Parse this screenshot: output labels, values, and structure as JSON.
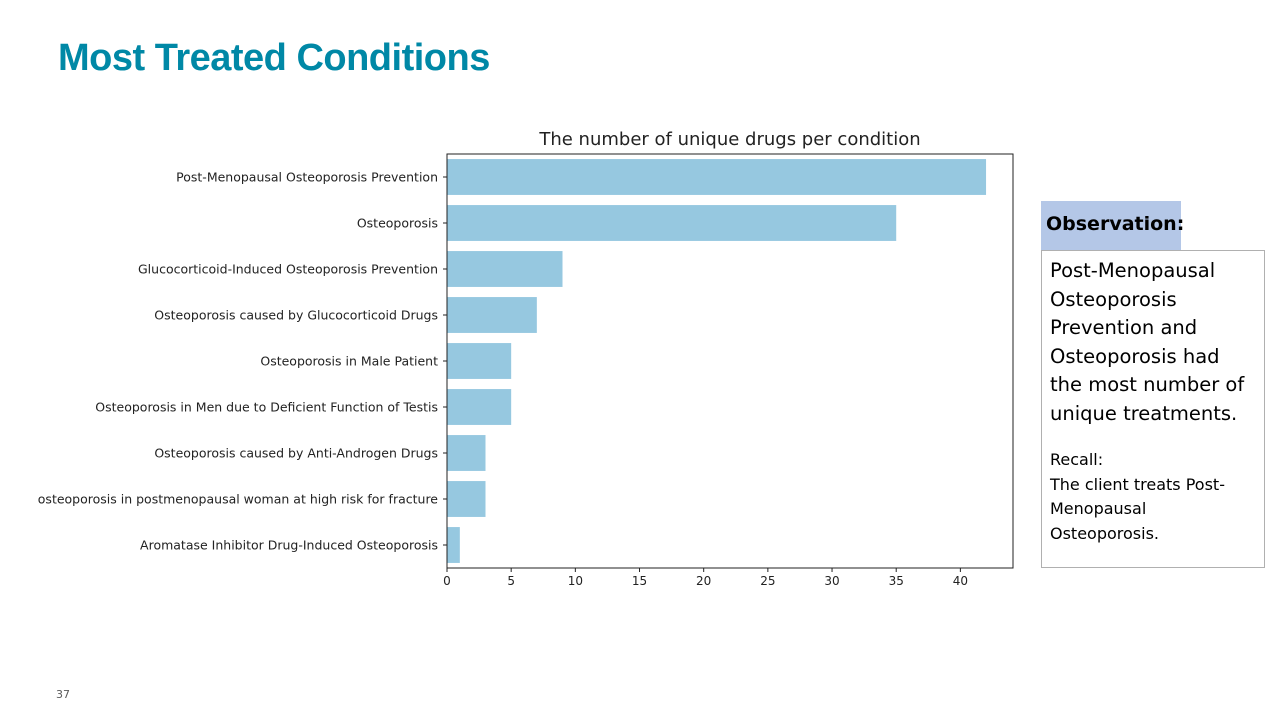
{
  "slide": {
    "title": "Most Treated Conditions",
    "title_color": "#0088A6",
    "page_number": "37"
  },
  "observation": {
    "header": "Observation:",
    "header_background": "#B4C7E7",
    "main_text": "Post-Menopausal Osteoporosis Prevention and Osteoporosis had the most number of unique treatments.",
    "recall_label": "Recall:",
    "recall_text": "The client treats Post-Menopausal Osteoporosis."
  },
  "chart_data": {
    "type": "bar",
    "orientation": "horizontal",
    "title": "The number of unique drugs per condition",
    "xlabel": "",
    "ylabel": "",
    "categories": [
      "Post-Menopausal Osteoporosis Prevention",
      "Osteoporosis",
      "Glucocorticoid-Induced Osteoporosis Prevention",
      "Osteoporosis caused by Glucocorticoid Drugs",
      "Osteoporosis in Male Patient",
      "Osteoporosis in Men due to Deficient Function of Testis",
      "Osteoporosis caused by Anti-Androgen Drugs",
      "osteoporosis in postmenopausal woman at high risk for fracture",
      "Aromatase Inhibitor Drug-Induced Osteoporosis"
    ],
    "values": [
      42,
      35,
      9,
      7,
      5,
      5,
      3,
      3,
      1
    ],
    "xlim": [
      0,
      44.1
    ],
    "xticks": [
      0,
      5,
      10,
      15,
      20,
      25,
      30,
      35,
      40
    ],
    "bar_color": "#96C8E0",
    "grid": false,
    "legend": "none"
  }
}
